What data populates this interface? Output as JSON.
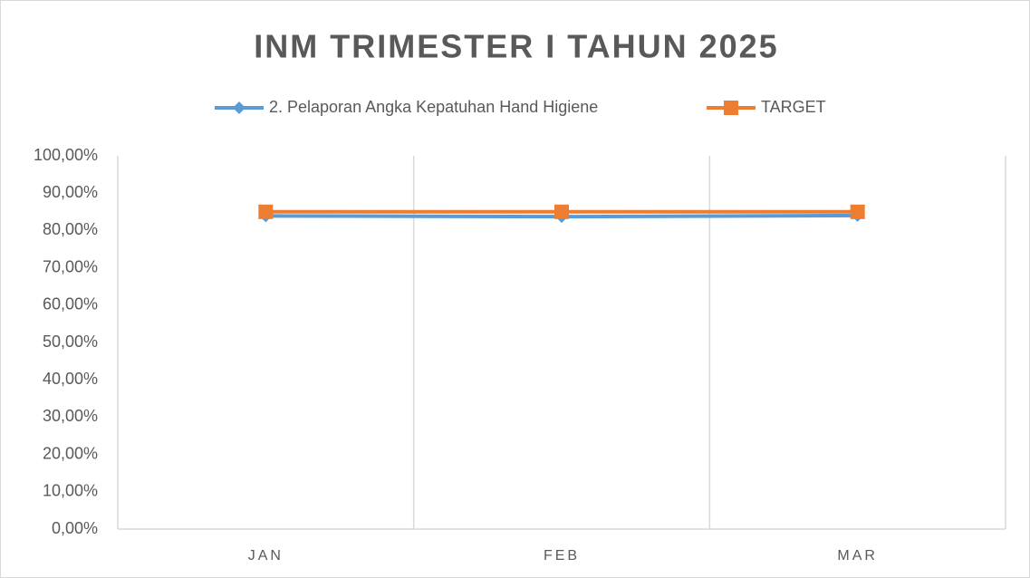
{
  "chart_data": {
    "type": "line",
    "title": "INM TRIMESTER I TAHUN 2025",
    "categories": [
      "JAN",
      "FEB",
      "MAR"
    ],
    "series": [
      {
        "name": "2. Pelaporan Angka Kepatuhan Hand Higiene",
        "color": "#5b9bd5",
        "marker": "diamond",
        "values": [
          83.9,
          83.7,
          84.0
        ]
      },
      {
        "name": "TARGET",
        "color": "#ed7d31",
        "marker": "square",
        "values": [
          85,
          85,
          85
        ]
      }
    ],
    "ylim": [
      0,
      100
    ],
    "yticks": [
      {
        "value": 0,
        "label": "0,00%"
      },
      {
        "value": 10,
        "label": "10,00%"
      },
      {
        "value": 20,
        "label": "20,00%"
      },
      {
        "value": 30,
        "label": "30,00%"
      },
      {
        "value": 40,
        "label": "40,00%"
      },
      {
        "value": 50,
        "label": "50,00%"
      },
      {
        "value": 60,
        "label": "60,00%"
      },
      {
        "value": 70,
        "label": "70,00%"
      },
      {
        "value": 80,
        "label": "80,00%"
      },
      {
        "value": 90,
        "label": "90,00%"
      },
      {
        "value": 100,
        "label": "100,00%"
      }
    ],
    "grid": true,
    "legend": "top"
  }
}
